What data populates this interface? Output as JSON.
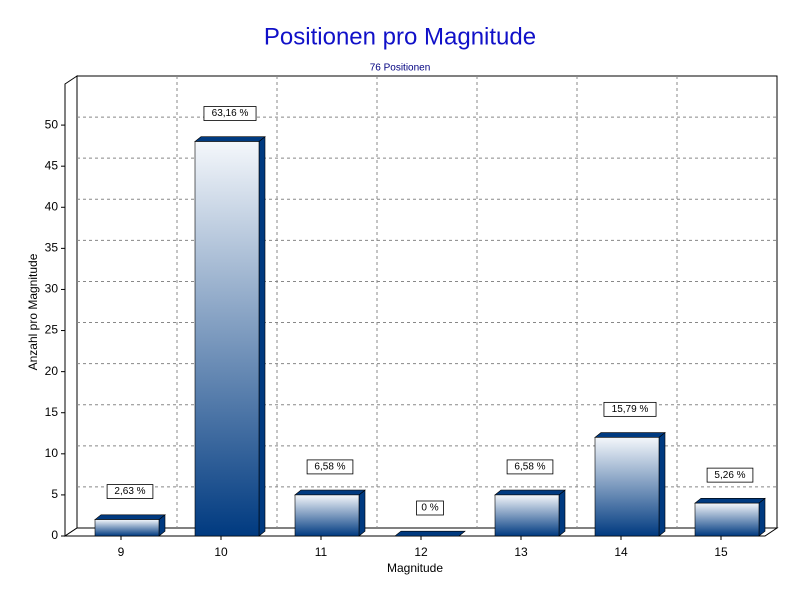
{
  "chart_data": {
    "type": "bar3d",
    "title": "Positionen pro Magnitude",
    "subtitle": "76 Positionen",
    "x_label": "Magnitude",
    "y_label": "Anzahl pro Magnitude",
    "categories": [
      "9",
      "10",
      "11",
      "12",
      "13",
      "14",
      "15"
    ],
    "values": [
      2,
      48,
      5,
      0,
      5,
      12,
      4
    ],
    "data_labels": [
      "2,63 %",
      "63,16 %",
      "6,58 %",
      "0 %",
      "6,58 %",
      "15,79 %",
      "5,26 %"
    ],
    "color": "#003a80",
    "ylim": [
      0,
      55
    ],
    "yticks": [
      0,
      5,
      10,
      15,
      20,
      25,
      30,
      35,
      40,
      45,
      50
    ],
    "grid": true
  }
}
